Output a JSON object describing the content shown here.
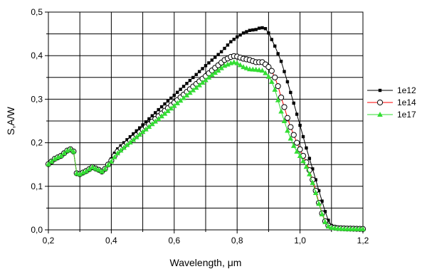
{
  "chart_data": {
    "type": "line",
    "title": "",
    "xlabel": "Wavelength, μm",
    "ylabel": "S,A/W",
    "xlim": [
      0.2,
      1.2
    ],
    "ylim": [
      0.0,
      0.5
    ],
    "grid": true,
    "legend_position": "right",
    "x_ticks": [
      "0,2",
      "0,4",
      "0,6",
      "0,8",
      "1,0",
      "1,2"
    ],
    "y_ticks": [
      "0,0",
      "0,1",
      "0,2",
      "0,3",
      "0,4",
      "0,5"
    ],
    "series": [
      {
        "name": "1e12",
        "color": "#000000",
        "marker": "square",
        "points": [
          [
            0.2,
            0.151
          ],
          [
            0.22,
            0.163
          ],
          [
            0.24,
            0.17
          ],
          [
            0.26,
            0.182
          ],
          [
            0.27,
            0.185
          ],
          [
            0.28,
            0.18
          ],
          [
            0.29,
            0.13
          ],
          [
            0.3,
            0.128
          ],
          [
            0.32,
            0.135
          ],
          [
            0.34,
            0.144
          ],
          [
            0.36,
            0.138
          ],
          [
            0.37,
            0.134
          ],
          [
            0.38,
            0.14
          ],
          [
            0.39,
            0.152
          ],
          [
            0.4,
            0.163
          ],
          [
            0.41,
            0.176
          ],
          [
            0.42,
            0.186
          ],
          [
            0.45,
            0.207
          ],
          [
            0.5,
            0.241
          ],
          [
            0.55,
            0.276
          ],
          [
            0.6,
            0.309
          ],
          [
            0.65,
            0.343
          ],
          [
            0.7,
            0.377
          ],
          [
            0.75,
            0.409
          ],
          [
            0.78,
            0.432
          ],
          [
            0.8,
            0.443
          ],
          [
            0.82,
            0.452
          ],
          [
            0.84,
            0.458
          ],
          [
            0.86,
            0.46
          ],
          [
            0.87,
            0.463
          ],
          [
            0.88,
            0.464
          ],
          [
            0.89,
            0.462
          ],
          [
            0.9,
            0.452
          ],
          [
            0.92,
            0.422
          ],
          [
            0.94,
            0.387
          ],
          [
            0.96,
            0.34
          ],
          [
            0.98,
            0.291
          ],
          [
            1.0,
            0.24
          ],
          [
            1.02,
            0.188
          ],
          [
            1.04,
            0.14
          ],
          [
            1.06,
            0.09
          ],
          [
            1.08,
            0.042
          ],
          [
            1.09,
            0.022
          ],
          [
            1.1,
            0.01
          ],
          [
            1.12,
            0.006
          ],
          [
            1.15,
            0.004
          ],
          [
            1.2,
            0.003
          ]
        ]
      },
      {
        "name": "1e14",
        "color": "#ff0000",
        "marker": "circle-open",
        "points": [
          [
            0.2,
            0.151
          ],
          [
            0.22,
            0.163
          ],
          [
            0.24,
            0.17
          ],
          [
            0.26,
            0.182
          ],
          [
            0.27,
            0.185
          ],
          [
            0.28,
            0.18
          ],
          [
            0.29,
            0.13
          ],
          [
            0.3,
            0.128
          ],
          [
            0.32,
            0.135
          ],
          [
            0.34,
            0.144
          ],
          [
            0.36,
            0.138
          ],
          [
            0.37,
            0.134
          ],
          [
            0.38,
            0.14
          ],
          [
            0.39,
            0.15
          ],
          [
            0.4,
            0.159
          ],
          [
            0.41,
            0.17
          ],
          [
            0.42,
            0.18
          ],
          [
            0.45,
            0.199
          ],
          [
            0.5,
            0.23
          ],
          [
            0.55,
            0.261
          ],
          [
            0.6,
            0.292
          ],
          [
            0.65,
            0.323
          ],
          [
            0.7,
            0.353
          ],
          [
            0.72,
            0.366
          ],
          [
            0.74,
            0.378
          ],
          [
            0.76,
            0.39
          ],
          [
            0.78,
            0.397
          ],
          [
            0.79,
            0.399
          ],
          [
            0.8,
            0.398
          ],
          [
            0.82,
            0.393
          ],
          [
            0.84,
            0.39
          ],
          [
            0.86,
            0.385
          ],
          [
            0.88,
            0.385
          ],
          [
            0.89,
            0.38
          ],
          [
            0.9,
            0.374
          ],
          [
            0.91,
            0.365
          ],
          [
            0.92,
            0.35
          ],
          [
            0.93,
            0.33
          ],
          [
            0.94,
            0.304
          ],
          [
            0.95,
            0.282
          ],
          [
            0.96,
            0.257
          ],
          [
            0.97,
            0.236
          ],
          [
            0.98,
            0.218
          ],
          [
            0.99,
            0.2
          ],
          [
            1.0,
            0.185
          ],
          [
            1.01,
            0.17
          ],
          [
            1.02,
            0.155
          ],
          [
            1.03,
            0.137
          ],
          [
            1.04,
            0.115
          ],
          [
            1.05,
            0.09
          ],
          [
            1.06,
            0.062
          ],
          [
            1.07,
            0.038
          ],
          [
            1.08,
            0.02
          ],
          [
            1.09,
            0.01
          ],
          [
            1.1,
            0.006
          ],
          [
            1.12,
            0.004
          ],
          [
            1.15,
            0.003
          ],
          [
            1.2,
            0.002
          ]
        ]
      },
      {
        "name": "1e17",
        "color": "#33dd33",
        "marker": "triangle",
        "points": [
          [
            0.2,
            0.151
          ],
          [
            0.22,
            0.163
          ],
          [
            0.24,
            0.17
          ],
          [
            0.26,
            0.182
          ],
          [
            0.27,
            0.185
          ],
          [
            0.28,
            0.18
          ],
          [
            0.29,
            0.13
          ],
          [
            0.3,
            0.128
          ],
          [
            0.32,
            0.135
          ],
          [
            0.34,
            0.144
          ],
          [
            0.36,
            0.138
          ],
          [
            0.37,
            0.134
          ],
          [
            0.38,
            0.14
          ],
          [
            0.39,
            0.149
          ],
          [
            0.4,
            0.157
          ],
          [
            0.41,
            0.167
          ],
          [
            0.42,
            0.176
          ],
          [
            0.45,
            0.195
          ],
          [
            0.5,
            0.225
          ],
          [
            0.55,
            0.255
          ],
          [
            0.6,
            0.285
          ],
          [
            0.65,
            0.315
          ],
          [
            0.7,
            0.344
          ],
          [
            0.72,
            0.356
          ],
          [
            0.74,
            0.366
          ],
          [
            0.76,
            0.377
          ],
          [
            0.78,
            0.383
          ],
          [
            0.79,
            0.385
          ],
          [
            0.8,
            0.383
          ],
          [
            0.82,
            0.374
          ],
          [
            0.84,
            0.369
          ],
          [
            0.86,
            0.368
          ],
          [
            0.88,
            0.366
          ],
          [
            0.89,
            0.36
          ],
          [
            0.9,
            0.352
          ],
          [
            0.91,
            0.34
          ],
          [
            0.92,
            0.322
          ],
          [
            0.93,
            0.298
          ],
          [
            0.94,
            0.272
          ],
          [
            0.95,
            0.25
          ],
          [
            0.96,
            0.228
          ],
          [
            0.97,
            0.21
          ],
          [
            0.98,
            0.193
          ],
          [
            0.99,
            0.18
          ],
          [
            1.0,
            0.17
          ],
          [
            1.01,
            0.158
          ],
          [
            1.02,
            0.145
          ],
          [
            1.03,
            0.128
          ],
          [
            1.04,
            0.108
          ],
          [
            1.05,
            0.085
          ],
          [
            1.06,
            0.06
          ],
          [
            1.07,
            0.036
          ],
          [
            1.08,
            0.018
          ],
          [
            1.09,
            0.008
          ],
          [
            1.1,
            0.005
          ],
          [
            1.12,
            0.003
          ],
          [
            1.15,
            0.002
          ],
          [
            1.2,
            0.002
          ]
        ]
      }
    ]
  }
}
